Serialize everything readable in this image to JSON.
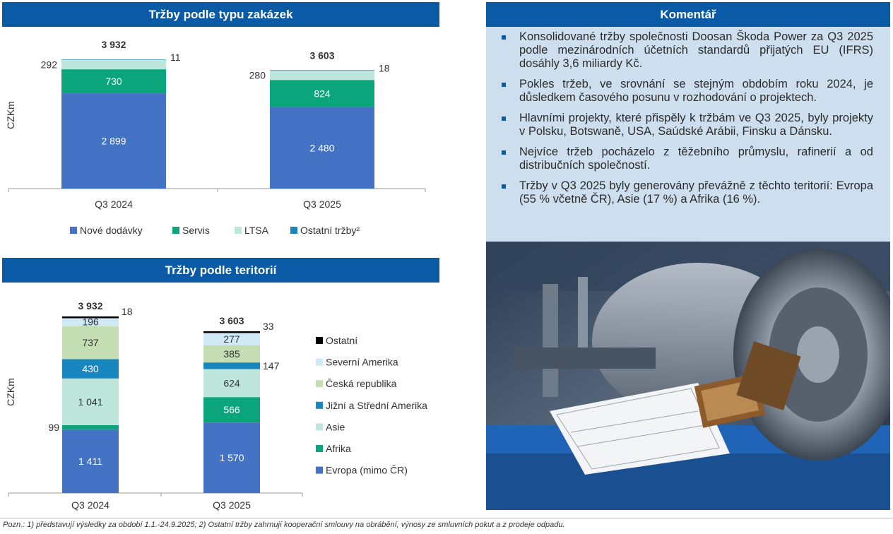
{
  "headers": {
    "types": "Tržby podle typu zakázek",
    "territories": "Tržby podle teritorií",
    "comment": "Komentář"
  },
  "chart_data": [
    {
      "type": "bar",
      "stacked": true,
      "title": "Tržby podle typu zakázek",
      "ylabel": "CZKm",
      "categories": [
        "Q3 2024",
        "Q3 2025"
      ],
      "totals": [
        "3 932",
        "3 603"
      ],
      "series": [
        {
          "name": "Nové dodávky",
          "color": "#4472c4",
          "values": [
            2899,
            2480
          ],
          "labels": [
            "2 899",
            "2 480"
          ]
        },
        {
          "name": "Servis",
          "color": "#0aa57a",
          "values": [
            730,
            824
          ],
          "labels": [
            "730",
            "824"
          ]
        },
        {
          "name": "LTSA",
          "color": "#bfe6dd",
          "values": [
            292,
            280
          ],
          "labels": [
            "292",
            "280"
          ]
        },
        {
          "name": "Ostatní tržby²",
          "color": "#1a86bf",
          "values": [
            11,
            18
          ],
          "labels": [
            "11",
            "18"
          ]
        }
      ]
    },
    {
      "type": "bar",
      "stacked": true,
      "title": "Tržby podle teritorií",
      "ylabel": "CZKm",
      "categories": [
        "Q3 2024",
        "Q3 2025"
      ],
      "totals": [
        "3 932",
        "3 603"
      ],
      "series": [
        {
          "name": "Evropa (mimo ČR)",
          "color": "#4472c4",
          "values": [
            1411,
            1570
          ],
          "labels": [
            "1 411",
            "1 570"
          ]
        },
        {
          "name": "Afrika",
          "color": "#0aa57a",
          "values": [
            99,
            566
          ],
          "labels": [
            "99",
            "566"
          ]
        },
        {
          "name": "Asie",
          "color": "#bfe6dd",
          "values": [
            1041,
            624
          ],
          "labels": [
            "1 041",
            "624"
          ]
        },
        {
          "name": "Jižní a Střední Amerika",
          "color": "#1a86bf",
          "values": [
            430,
            147
          ],
          "labels": [
            "430",
            "147"
          ]
        },
        {
          "name": "Česká republika",
          "color": "#c5ddb3",
          "values": [
            737,
            385
          ],
          "labels": [
            "737",
            "385"
          ]
        },
        {
          "name": "Severní Amerika",
          "color": "#cfe9f7",
          "values": [
            196,
            277
          ],
          "labels": [
            "196",
            "277"
          ]
        },
        {
          "name": "Ostatní",
          "color": "#000000",
          "values": [
            18,
            33
          ],
          "labels": [
            "18",
            "33"
          ]
        }
      ]
    }
  ],
  "comment": {
    "bullets": [
      "Konsolidované tržby společnosti Doosan Škoda Power za Q3 2025 podle mezinárodních účetních standardů přijatých EU (IFRS) dosáhly 3,6 miliardy Kč.",
      "Pokles tržeb, ve srovnání se stejným obdobím roku 2024, je důsledkem časového posunu v rozhodování o projektech.",
      "Hlavními projekty, které přispěly k tržbám ve Q3 2025, byly projekty v Polsku, Botswaně, USA, Saúdské Arábii, Finsku a Dánsku.",
      "Nejvíce tržeb pocházelo z těžebního průmyslu, rafinerií a od distribučních společností.",
      "Tržby v Q3 2025 byly generovány převážně z těchto teritorií: Evropa (55 % včetně ČR), Asie (17 %) a Afrika (16 %)."
    ]
  },
  "footnote": "Pozn.: 1) představují výsledky za období 1.1.-24.9.2025; 2) Ostatní tržby zahrnují kooperační smlouvy na obrábění, výnosy ze smluvních pokut a z prodeje odpadu."
}
